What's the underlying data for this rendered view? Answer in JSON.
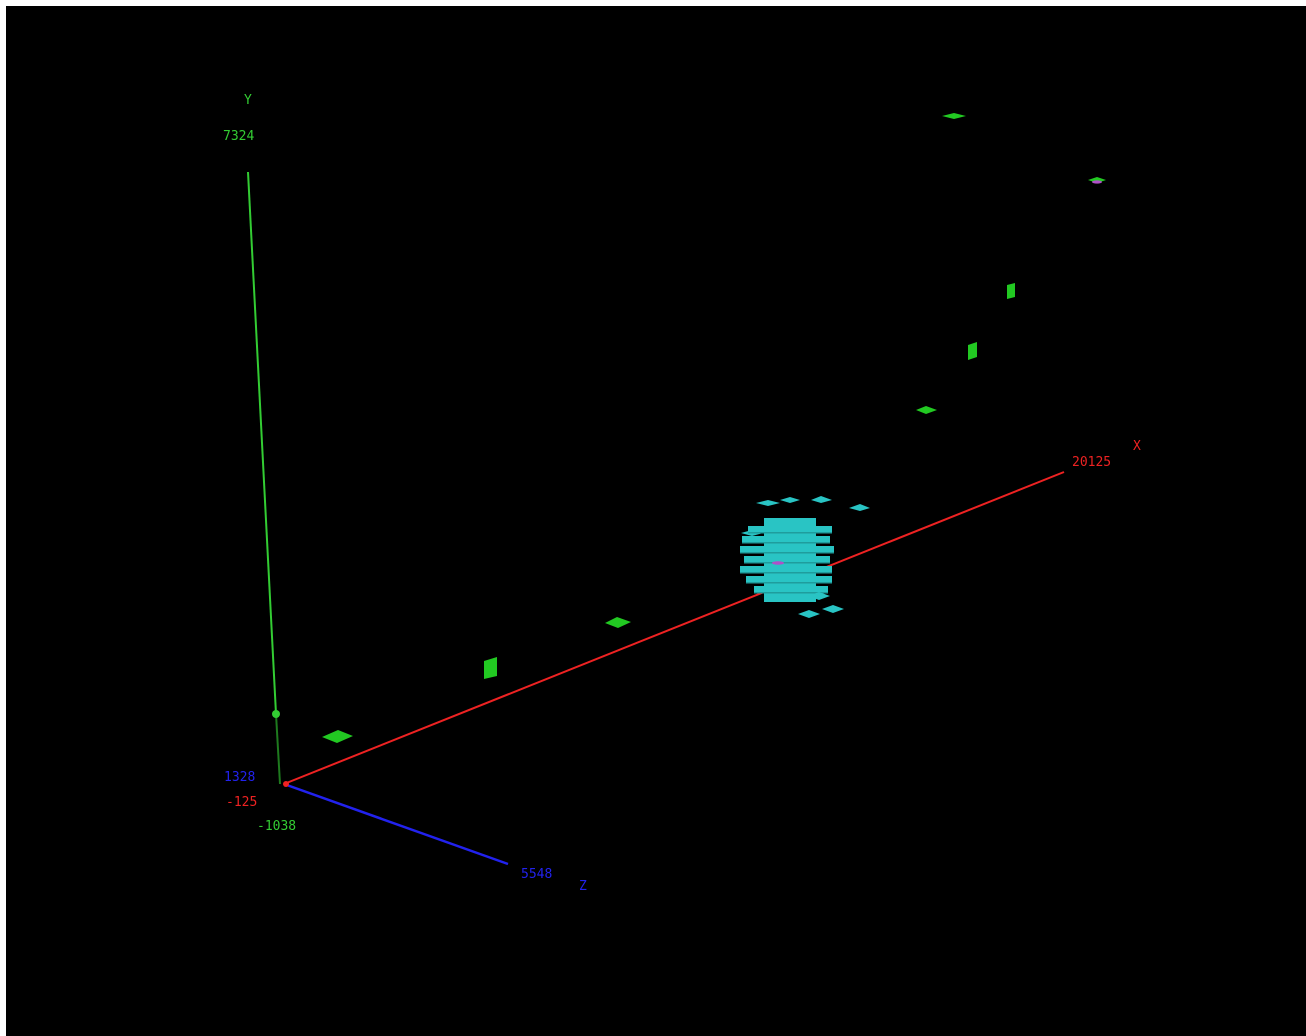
{
  "axes": {
    "x": {
      "name": "X",
      "min_label": "-125",
      "max_label": "20125",
      "color": "#ee2222"
    },
    "y": {
      "name": "Y",
      "min_label": "-1038",
      "max_label": "7324",
      "color": "#33cc33"
    },
    "z": {
      "name": "Z",
      "min_label": "1328",
      "max_label": "5548",
      "color": "#2222ee"
    }
  },
  "colors": {
    "background": "#000000",
    "frame": "#ffffff",
    "green_object": "#22c922",
    "cyan_object": "#29c4c4",
    "magenta_marker": "#b050c8"
  }
}
